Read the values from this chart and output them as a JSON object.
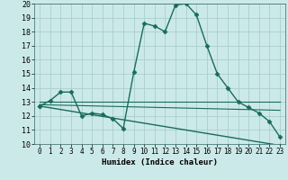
{
  "xlabel": "Humidex (Indice chaleur)",
  "xlim": [
    -0.5,
    23.5
  ],
  "ylim": [
    10,
    20
  ],
  "yticks": [
    10,
    11,
    12,
    13,
    14,
    15,
    16,
    17,
    18,
    19,
    20
  ],
  "xticks": [
    0,
    1,
    2,
    3,
    4,
    5,
    6,
    7,
    8,
    9,
    10,
    11,
    12,
    13,
    14,
    15,
    16,
    17,
    18,
    19,
    20,
    21,
    22,
    23
  ],
  "bg_color": "#cce9e9",
  "grid_color": "#aacece",
  "line_color": "#1a6b5a",
  "series": [
    {
      "x": [
        0,
        1,
        2,
        3,
        4,
        5,
        6,
        7,
        8,
        9,
        10,
        11,
        12,
        13,
        14,
        15,
        16,
        17,
        18,
        19,
        20,
        21,
        22,
        23
      ],
      "y": [
        12.7,
        13.1,
        13.7,
        13.7,
        12.0,
        12.2,
        12.1,
        11.8,
        11.1,
        15.1,
        18.6,
        18.4,
        18.0,
        19.9,
        20.0,
        19.2,
        17.0,
        15.0,
        14.0,
        13.0,
        12.6,
        12.2,
        11.6,
        10.5
      ],
      "marker": "D",
      "markersize": 2.5,
      "linewidth": 1.0
    },
    {
      "x": [
        0,
        23
      ],
      "y": [
        13.0,
        13.0
      ],
      "marker": null,
      "markersize": 0,
      "linewidth": 0.8
    },
    {
      "x": [
        0,
        23
      ],
      "y": [
        12.8,
        12.4
      ],
      "marker": null,
      "markersize": 0,
      "linewidth": 0.8
    },
    {
      "x": [
        0,
        23
      ],
      "y": [
        12.7,
        9.9
      ],
      "marker": "D",
      "markersize": 2.5,
      "linewidth": 1.0
    }
  ]
}
